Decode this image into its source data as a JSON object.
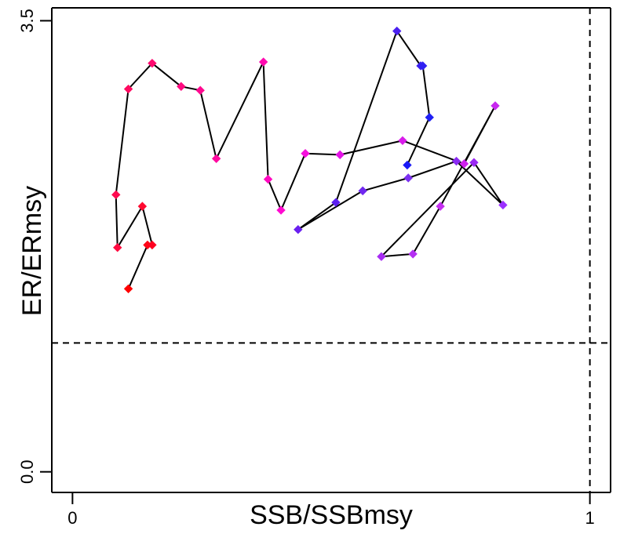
{
  "chart_data": {
    "type": "scatter",
    "xlabel": "SSB/SSBmsy",
    "ylabel": "ER/ERmsy",
    "xlim": [
      -0.04,
      1.04
    ],
    "ylim": [
      -0.16,
      3.6
    ],
    "x_ticks": [
      {
        "value": 0,
        "label": "0"
      },
      {
        "value": 1,
        "label": "1"
      }
    ],
    "y_ticks": [
      {
        "value": 0,
        "label": "0.0"
      },
      {
        "value": 3.5,
        "label": "3.5"
      }
    ],
    "reference_lines": {
      "x": 1,
      "y": 1.0,
      "style": "dashed"
    },
    "grid": false,
    "legend": "none",
    "connected": true,
    "points": [
      {
        "x": 0.108,
        "y": 1.42,
        "color": "#FF0000"
      },
      {
        "x": 0.145,
        "y": 1.76,
        "color": "#FF0616"
      },
      {
        "x": 0.154,
        "y": 1.76,
        "color": "#FF0020"
      },
      {
        "x": 0.135,
        "y": 2.06,
        "color": "#FF0A30"
      },
      {
        "x": 0.087,
        "y": 1.74,
        "color": "#FF0A40"
      },
      {
        "x": 0.084,
        "y": 2.15,
        "color": "#FF0A50"
      },
      {
        "x": 0.108,
        "y": 2.97,
        "color": "#FF0A60"
      },
      {
        "x": 0.154,
        "y": 3.17,
        "color": "#FF0A70"
      },
      {
        "x": 0.21,
        "y": 2.99,
        "color": "#FF0A80"
      },
      {
        "x": 0.247,
        "y": 2.96,
        "color": "#FF0A90"
      },
      {
        "x": 0.278,
        "y": 2.43,
        "color": "#FF0AA0"
      },
      {
        "x": 0.369,
        "y": 3.18,
        "color": "#FF0AB0"
      },
      {
        "x": 0.378,
        "y": 2.27,
        "color": "#FF0AC0"
      },
      {
        "x": 0.403,
        "y": 2.03,
        "color": "#FF0AD0"
      },
      {
        "x": 0.45,
        "y": 2.47,
        "color": "#F510DC"
      },
      {
        "x": 0.517,
        "y": 2.46,
        "color": "#E414E6"
      },
      {
        "x": 0.638,
        "y": 2.57,
        "color": "#D81CEA"
      },
      {
        "x": 0.757,
        "y": 2.39,
        "color": "#D020EE"
      },
      {
        "x": 0.817,
        "y": 2.84,
        "color": "#C828F0"
      },
      {
        "x": 0.711,
        "y": 2.06,
        "color": "#C430F0"
      },
      {
        "x": 0.658,
        "y": 1.69,
        "color": "#B430F2"
      },
      {
        "x": 0.597,
        "y": 1.67,
        "color": "#A82CF4"
      },
      {
        "x": 0.776,
        "y": 2.4,
        "color": "#9A28F4"
      },
      {
        "x": 0.832,
        "y": 2.07,
        "color": "#9B30FF"
      },
      {
        "x": 0.742,
        "y": 2.41,
        "color": "#8A2BF2"
      },
      {
        "x": 0.649,
        "y": 2.28,
        "color": "#7B30F0"
      },
      {
        "x": 0.561,
        "y": 2.18,
        "color": "#7028F0"
      },
      {
        "x": 0.436,
        "y": 1.88,
        "color": "#6A20F0"
      },
      {
        "x": 0.509,
        "y": 2.09,
        "color": "#5C20F0"
      },
      {
        "x": 0.627,
        "y": 3.42,
        "color": "#4A20F0"
      },
      {
        "x": 0.673,
        "y": 3.15,
        "color": "#3C20F0"
      },
      {
        "x": 0.677,
        "y": 3.15,
        "color": "#3020F2"
      },
      {
        "x": 0.69,
        "y": 2.75,
        "color": "#2020F4"
      },
      {
        "x": 0.647,
        "y": 2.38,
        "color": "#1818F6"
      }
    ]
  }
}
